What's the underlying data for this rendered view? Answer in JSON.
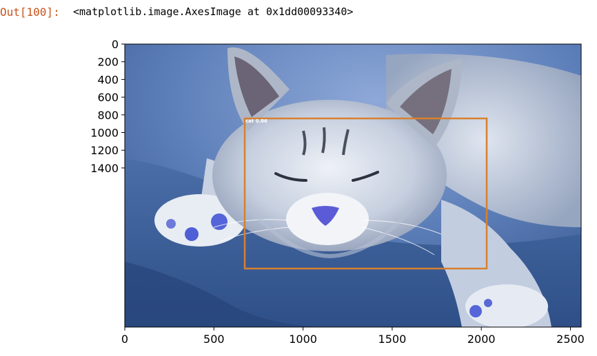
{
  "cell": {
    "prompt": "Out[100]:",
    "text": "<matplotlib.image.AxesImage at 0x1dd00093340>"
  },
  "figure": {
    "image_subject": "sleeping gray kitten on blue blanket",
    "x_ticks": [
      "0",
      "500",
      "1000",
      "1500",
      "2000",
      "2500"
    ],
    "y_ticks": [
      "0",
      "200",
      "400",
      "600",
      "800",
      "1000",
      "1200",
      "1400"
    ],
    "bbox": {
      "label": "cat 0.86",
      "color": "#d7802e"
    }
  }
}
